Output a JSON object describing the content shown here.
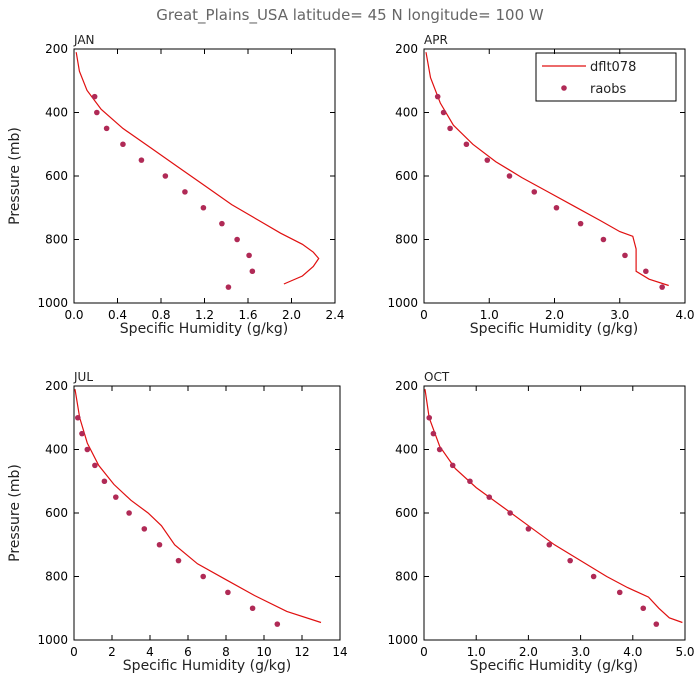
{
  "title": "Great_Plains_USA   latitude= 45 N longitude= 100 W",
  "colors": {
    "model": "#e01010",
    "obs": "#b02a56"
  },
  "legend": {
    "position": "top-right",
    "model": "dflt078",
    "obs": "raobs"
  },
  "chart_data": [
    {
      "type": "line",
      "panel_title": "JAN",
      "xlabel": "Specific Humidity (g/kg)",
      "ylabel": "Pressure (mb)",
      "xlim": [
        0,
        2.4
      ],
      "xticks": [
        0.0,
        0.4,
        0.8,
        1.2,
        1.6,
        2.0,
        2.4
      ],
      "xtick_labels": [
        "0.0",
        "0.4",
        "0.8",
        "1.2",
        "1.6",
        "2.0",
        "2.4"
      ],
      "ylim": [
        200,
        1000
      ],
      "yticks": [
        200,
        400,
        600,
        800,
        1000
      ],
      "ytick_labels": [
        "200",
        "400",
        "600",
        "800",
        "1000"
      ],
      "model": {
        "name": "dflt078",
        "x": [
          0.02,
          0.05,
          0.12,
          0.25,
          0.45,
          0.7,
          0.95,
          1.2,
          1.45,
          1.7,
          1.9,
          2.1,
          2.2,
          2.25,
          2.2,
          2.1,
          1.93
        ],
        "y": [
          210,
          270,
          330,
          390,
          450,
          510,
          570,
          630,
          690,
          740,
          780,
          815,
          840,
          860,
          885,
          915,
          940
        ]
      },
      "obs": {
        "name": "raobs",
        "x": [
          0.19,
          0.21,
          0.3,
          0.45,
          0.62,
          0.84,
          1.02,
          1.19,
          1.36,
          1.5,
          1.61,
          1.64,
          1.42
        ],
        "y": [
          350,
          400,
          450,
          500,
          550,
          600,
          650,
          700,
          750,
          800,
          850,
          900,
          950
        ]
      }
    },
    {
      "type": "line",
      "panel_title": "APR",
      "xlabel": "Specific Humidity (g/kg)",
      "ylabel": "",
      "xlim": [
        0,
        4.0
      ],
      "xticks": [
        0,
        1.0,
        2.0,
        3.0,
        4.0
      ],
      "xtick_labels": [
        "0",
        "1.0",
        "2.0",
        "3.0",
        "4.0"
      ],
      "ylim": [
        200,
        1000
      ],
      "yticks": [
        200,
        400,
        600,
        800,
        1000
      ],
      "ytick_labels": [
        "200",
        "400",
        "600",
        "800",
        "1000"
      ],
      "model": {
        "name": "dflt078",
        "x": [
          0.03,
          0.1,
          0.25,
          0.45,
          0.75,
          1.1,
          1.5,
          1.9,
          2.3,
          2.7,
          3.0,
          3.2,
          3.25,
          3.25,
          3.45,
          3.75
        ],
        "y": [
          210,
          290,
          370,
          440,
          500,
          555,
          605,
          650,
          695,
          740,
          775,
          790,
          830,
          900,
          925,
          945
        ]
      },
      "obs": {
        "name": "raobs",
        "x": [
          0.21,
          0.3,
          0.4,
          0.65,
          0.97,
          1.31,
          1.69,
          2.03,
          2.4,
          2.75,
          3.08,
          3.4,
          3.65
        ],
        "y": [
          350,
          400,
          450,
          500,
          550,
          600,
          650,
          700,
          750,
          800,
          850,
          900,
          950
        ]
      }
    },
    {
      "type": "line",
      "panel_title": "JUL",
      "xlabel": "Specific Humidity (g/kg)",
      "ylabel": "Pressure (mb)",
      "xlim": [
        0,
        14
      ],
      "xticks": [
        0,
        2,
        4,
        6,
        8,
        10,
        12,
        14
      ],
      "xtick_labels": [
        "0",
        "2",
        "4",
        "6",
        "8",
        "10",
        "12",
        "14"
      ],
      "ylim": [
        200,
        1000
      ],
      "yticks": [
        200,
        400,
        600,
        800,
        1000
      ],
      "ytick_labels": [
        "200",
        "400",
        "600",
        "800",
        "1000"
      ],
      "model": {
        "name": "dflt078",
        "x": [
          0.05,
          0.3,
          0.7,
          1.3,
          2.1,
          3.0,
          3.9,
          4.6,
          5.3,
          6.5,
          8.0,
          9.5,
          11.2,
          13.0
        ],
        "y": [
          210,
          300,
          380,
          450,
          510,
          560,
          600,
          640,
          700,
          760,
          810,
          860,
          910,
          945
        ]
      },
      "obs": {
        "name": "raobs",
        "x": [
          0.2,
          0.42,
          0.7,
          1.1,
          1.6,
          2.2,
          2.9,
          3.7,
          4.5,
          5.5,
          6.8,
          8.1,
          9.4,
          10.7
        ],
        "y": [
          300,
          350,
          400,
          450,
          500,
          550,
          600,
          650,
          700,
          750,
          800,
          850,
          900,
          950
        ]
      }
    },
    {
      "type": "line",
      "panel_title": "OCT",
      "xlabel": "Specific Humidity (g/kg)",
      "ylabel": "",
      "xlim": [
        0,
        5.0
      ],
      "xticks": [
        0,
        1.0,
        2.0,
        3.0,
        4.0,
        5.0
      ],
      "xtick_labels": [
        "0",
        "1.0",
        "2.0",
        "3.0",
        "4.0",
        "5.0"
      ],
      "ylim": [
        200,
        1000
      ],
      "yticks": [
        200,
        400,
        600,
        800,
        1000
      ],
      "ytick_labels": [
        "200",
        "400",
        "600",
        "800",
        "1000"
      ],
      "model": {
        "name": "dflt078",
        "x": [
          0.02,
          0.1,
          0.3,
          0.6,
          1.0,
          1.5,
          2.0,
          2.5,
          3.0,
          3.5,
          3.9,
          4.3,
          4.5,
          4.7,
          4.95
        ],
        "y": [
          210,
          300,
          390,
          460,
          520,
          580,
          640,
          700,
          750,
          800,
          835,
          865,
          900,
          930,
          945
        ]
      },
      "obs": {
        "name": "raobs",
        "x": [
          0.1,
          0.18,
          0.3,
          0.55,
          0.88,
          1.25,
          1.65,
          2.0,
          2.4,
          2.8,
          3.25,
          3.75,
          4.2,
          4.45
        ],
        "y": [
          300,
          350,
          400,
          450,
          500,
          550,
          600,
          650,
          700,
          750,
          800,
          850,
          900,
          950
        ]
      }
    }
  ]
}
